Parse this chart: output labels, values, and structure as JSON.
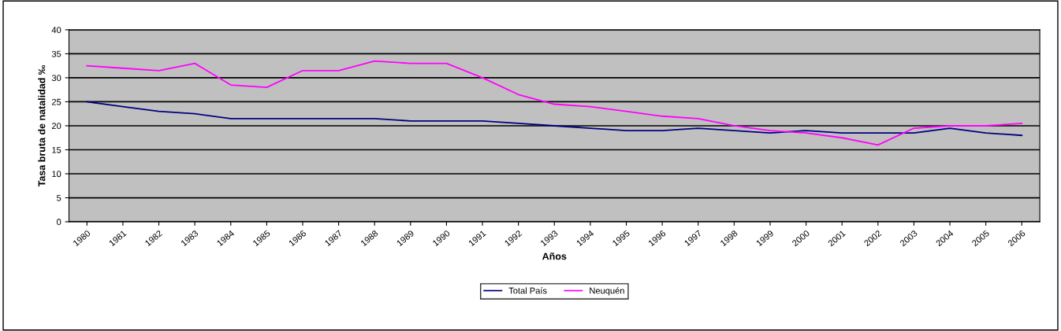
{
  "chart_data": {
    "type": "line",
    "xlabel": "Años",
    "ylabel": "Tasa bruta de natalidad ‰",
    "categories": [
      "1980",
      "1981",
      "1982",
      "1983",
      "1984",
      "1985",
      "1986",
      "1987",
      "1988",
      "1989",
      "1990",
      "1991",
      "1992",
      "1993",
      "1994",
      "1995",
      "1996",
      "1997",
      "1998",
      "1999",
      "2000",
      "2001",
      "2002",
      "2003",
      "2004",
      "2005",
      "2006"
    ],
    "series": [
      {
        "name": "Total País",
        "color": "#000080",
        "values": [
          25,
          24,
          23,
          22.5,
          21.5,
          21.5,
          21.5,
          21.5,
          21.5,
          21,
          21,
          21,
          20.5,
          20,
          19.5,
          19,
          19,
          19.5,
          19,
          18.5,
          19,
          18.5,
          18.5,
          18.5,
          19.5,
          18.5,
          18
        ]
      },
      {
        "name": "Neuquén",
        "color": "#ff00ff",
        "values": [
          32.5,
          32,
          31.5,
          33,
          28.5,
          28,
          31.5,
          31.5,
          33.5,
          33,
          33,
          30,
          26.5,
          24.5,
          24,
          23,
          22,
          21.5,
          20,
          19,
          18.5,
          17.5,
          16,
          19.5,
          20,
          20,
          20.5
        ]
      }
    ],
    "ylim": [
      0,
      40
    ],
    "yticks": [
      0,
      5,
      10,
      15,
      20,
      25,
      30,
      35,
      40
    ],
    "grid": "y",
    "legend": "bottom",
    "marker": "none",
    "line_style": "solid"
  }
}
